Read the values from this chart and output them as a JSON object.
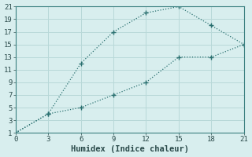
{
  "line1_x": [
    0,
    3,
    6,
    9,
    12,
    15,
    18,
    21
  ],
  "line1_y": [
    1,
    4,
    12,
    17,
    20,
    21,
    18,
    15
  ],
  "line2_x": [
    0,
    3,
    6,
    9,
    12,
    15,
    18,
    21
  ],
  "line2_y": [
    1,
    4,
    5,
    7,
    9,
    13,
    13,
    15
  ],
  "line_color": "#2a7070",
  "bg_color": "#d8eeee",
  "grid_color": "#b8d8d8",
  "spine_color": "#3a8080",
  "xlabel": "Humidex (Indice chaleur)",
  "xlim": [
    0,
    21
  ],
  "ylim": [
    1,
    21
  ],
  "xticks": [
    0,
    3,
    6,
    9,
    12,
    15,
    18,
    21
  ],
  "yticks": [
    1,
    3,
    5,
    7,
    9,
    11,
    13,
    15,
    17,
    19,
    21
  ],
  "font_color": "#2a4a4a",
  "tick_fontsize": 6.5,
  "label_fontsize": 7.5
}
